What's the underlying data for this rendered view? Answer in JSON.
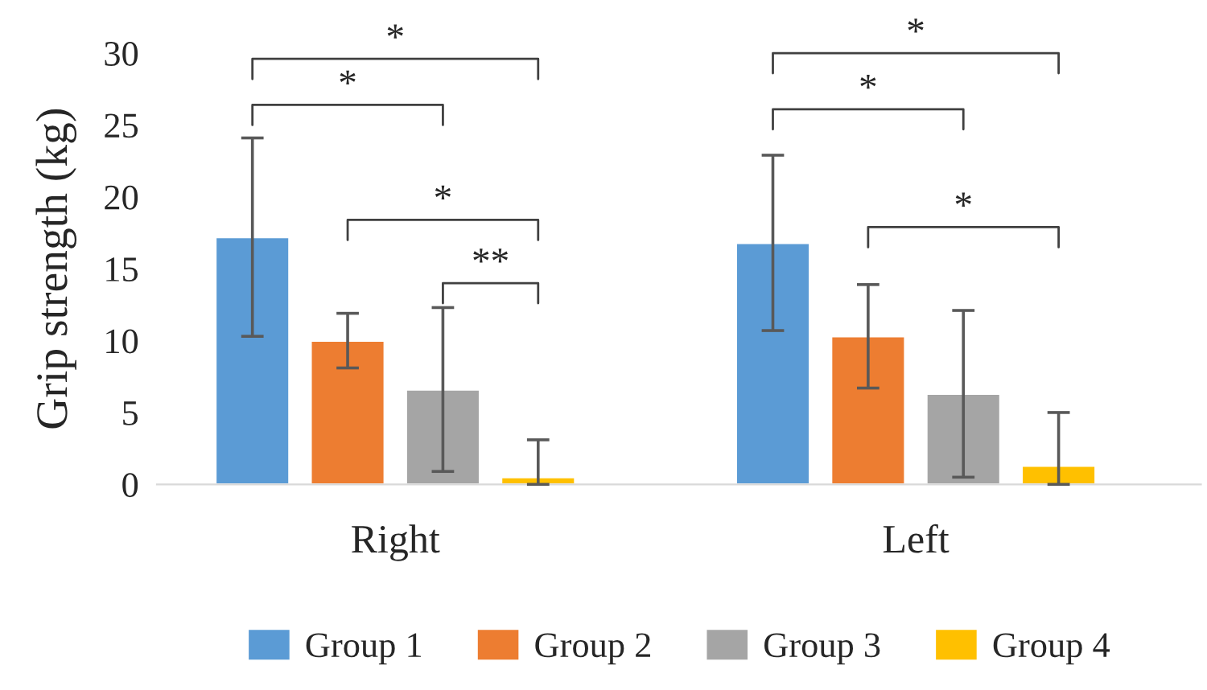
{
  "chart_data": {
    "type": "bar",
    "ylabel": "Grip strength (kg)",
    "categories": [
      "Right",
      "Left"
    ],
    "series": [
      {
        "name": "Group 1",
        "color": "#5b9bd5",
        "values": [
          17.2,
          16.8
        ],
        "errors": [
          6.9,
          6.1
        ]
      },
      {
        "name": "Group 2",
        "color": "#ed7d31",
        "values": [
          10.0,
          10.3
        ],
        "errors": [
          1.9,
          3.6
        ]
      },
      {
        "name": "Group 3",
        "color": "#a5a5a5",
        "values": [
          6.6,
          6.3
        ],
        "errors": [
          5.7,
          5.8
        ]
      },
      {
        "name": "Group 4",
        "color": "#ffc000",
        "values": [
          0.5,
          1.3
        ],
        "errors": [
          [
            0,
            3.1
          ],
          [
            0,
            5.0
          ]
        ]
      }
    ],
    "ylim": [
      0,
      30
    ],
    "yticks": [
      0,
      5,
      10,
      15,
      20,
      25,
      30
    ],
    "grid": false,
    "legend": "bottom",
    "annotations": [
      "*",
      "*",
      "*",
      "**",
      "*",
      "*",
      "*"
    ]
  }
}
